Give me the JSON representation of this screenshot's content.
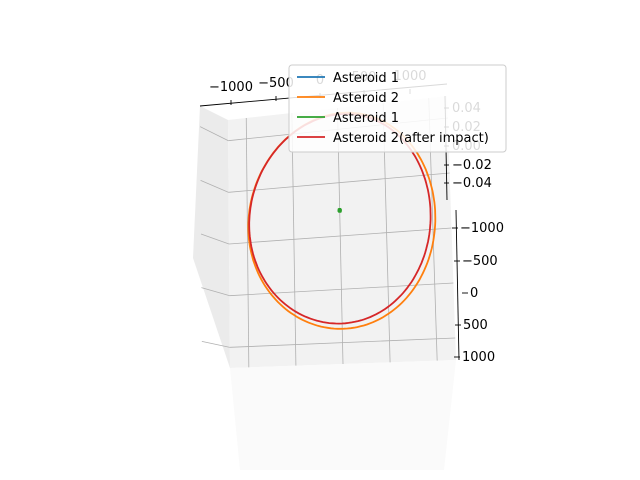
{
  "chart_data": {
    "type": "line",
    "projection": "3d",
    "title": "",
    "xlabel": "",
    "ylabel": "",
    "zlabel": "",
    "xlim": [
      -1200,
      1200
    ],
    "ylim": [
      -1200,
      1200
    ],
    "zlim": [
      -0.05,
      0.05
    ],
    "grid": true,
    "legend_position": "upper right",
    "x_ticks": [
      {
        "value": -1000,
        "label": "−1000"
      },
      {
        "value": -500,
        "label": "−500"
      },
      {
        "value": 0,
        "label": "0"
      },
      {
        "value": 500,
        "label": "500"
      },
      {
        "value": 1000,
        "label": "1000"
      }
    ],
    "y_ticks": [
      {
        "value": -1000,
        "label": "−1000"
      },
      {
        "value": -500,
        "label": "−500"
      },
      {
        "value": 0,
        "label": "0"
      },
      {
        "value": 500,
        "label": "500"
      },
      {
        "value": 1000,
        "label": "1000"
      }
    ],
    "z_ticks": [
      {
        "value": 0.04,
        "label": "0.04"
      },
      {
        "value": 0.02,
        "label": "0.02"
      },
      {
        "value": 0.0,
        "label": "0.00"
      },
      {
        "value": -0.02,
        "label": "−0.02"
      },
      {
        "value": -0.04,
        "label": "−0.04"
      }
    ],
    "series": [
      {
        "name": "Asteroid 1",
        "color": "#1f77b4",
        "shape": "point",
        "center": [
          0,
          -240
        ],
        "radius": 0
      },
      {
        "name": "Asteroid 2",
        "color": "#ff7f0e",
        "shape": "circle",
        "center": [
          20,
          -140
        ],
        "radius": 1010
      },
      {
        "name": "Asteroid 1",
        "color": "#2ca02c",
        "shape": "circle",
        "center": [
          0,
          -240
        ],
        "radius": 14
      },
      {
        "name": "Asteroid 2(after impact)",
        "color": "#d62728",
        "shape": "circle",
        "center": [
          0,
          -160
        ],
        "radius": 980
      }
    ]
  }
}
